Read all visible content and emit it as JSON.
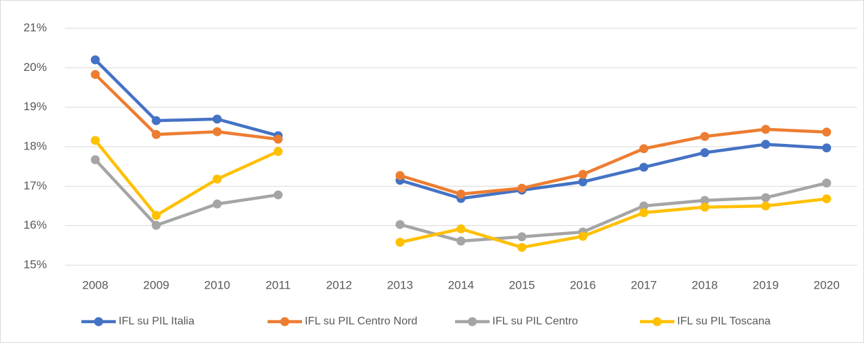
{
  "chart_data": {
    "type": "line",
    "categories": [
      "2008",
      "2009",
      "2010",
      "2011",
      "2012",
      "2013",
      "2014",
      "2015",
      "2016",
      "2017",
      "2018",
      "2019",
      "2020"
    ],
    "series": [
      {
        "name": "IFL su PIL Italia",
        "color": "#4472c4",
        "values": [
          20.2,
          18.66,
          18.7,
          18.28,
          null,
          17.15,
          16.69,
          16.9,
          17.11,
          17.48,
          17.85,
          18.06,
          17.97
        ]
      },
      {
        "name": "IFL su PIL Centro Nord",
        "color": "#ed7d31",
        "values": [
          19.83,
          18.31,
          18.38,
          18.19,
          null,
          17.27,
          16.8,
          16.95,
          17.3,
          17.95,
          18.26,
          18.44,
          18.37
        ]
      },
      {
        "name": "IFL su PIL Centro",
        "color": "#a5a5a5",
        "values": [
          17.67,
          16.01,
          16.55,
          16.78,
          null,
          16.03,
          15.61,
          15.72,
          15.84,
          16.5,
          16.64,
          16.71,
          17.08
        ]
      },
      {
        "name": "IFL su PIL Toscana",
        "color": "#ffc000",
        "values": [
          18.16,
          16.26,
          17.18,
          17.88,
          null,
          15.58,
          15.92,
          15.45,
          15.73,
          16.33,
          16.47,
          16.5,
          16.68
        ]
      }
    ],
    "ylim": [
      15,
      21
    ],
    "yticks": [
      {
        "value": 15,
        "label": "15%"
      },
      {
        "value": 16,
        "label": "16%"
      },
      {
        "value": 17,
        "label": "17%"
      },
      {
        "value": 18,
        "label": "18%"
      },
      {
        "value": 19,
        "label": "19%"
      },
      {
        "value": 20,
        "label": "20%"
      },
      {
        "value": 21,
        "label": "21%"
      }
    ],
    "grid": true,
    "legend": "bottom"
  }
}
